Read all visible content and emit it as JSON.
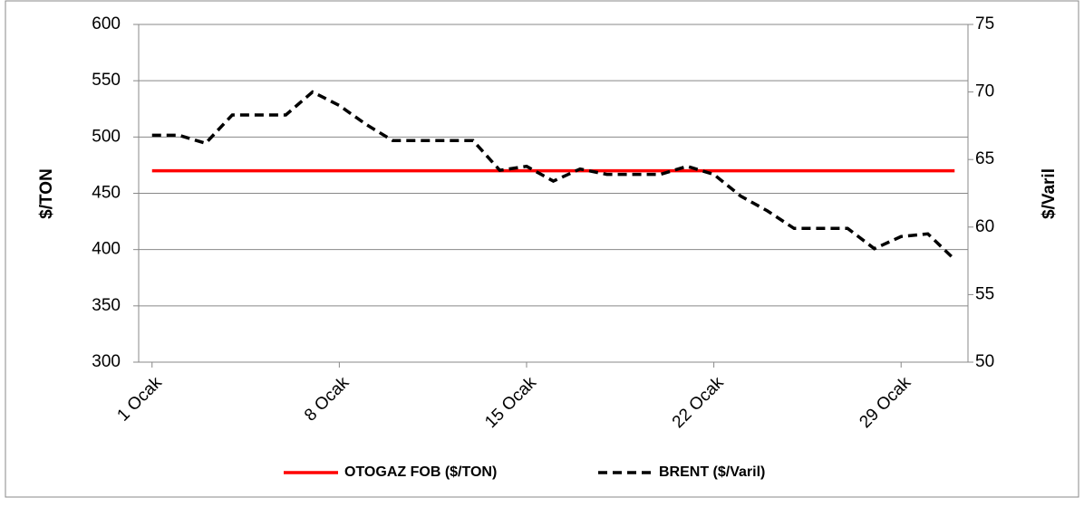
{
  "chart_data": {
    "type": "line",
    "x": [
      1,
      2,
      3,
      4,
      5,
      6,
      7,
      8,
      9,
      10,
      11,
      12,
      13,
      14,
      15,
      16,
      17,
      18,
      19,
      20,
      21,
      22,
      23,
      24,
      25,
      26,
      27,
      28,
      29,
      30,
      31
    ],
    "xlim": [
      0.5,
      31.5
    ],
    "xticks": [
      {
        "value": 1,
        "label": "1 Ocak"
      },
      {
        "value": 8,
        "label": "8 Ocak"
      },
      {
        "value": 15,
        "label": "15 Ocak"
      },
      {
        "value": 22,
        "label": "22 Ocak"
      },
      {
        "value": 29,
        "label": "29 Ocak"
      }
    ],
    "ylabel": "$/TON",
    "y2label": "$/Varil",
    "ylim": [
      300,
      600
    ],
    "yticks": [
      300,
      350,
      400,
      450,
      500,
      550,
      600
    ],
    "y2lim": [
      50,
      75
    ],
    "y2ticks": [
      50,
      55,
      60,
      65,
      70,
      75
    ],
    "grid": true,
    "legend": "bottom",
    "series": [
      {
        "name": "OTOGAZ FOB ($/TON)",
        "color": "#ff0000",
        "dash": false,
        "values": [
          470,
          470,
          470,
          470,
          470,
          470,
          470,
          470,
          470,
          470,
          470,
          470,
          470,
          470,
          470,
          470,
          470,
          470,
          470,
          470,
          470,
          470,
          470,
          470,
          470,
          470,
          470,
          470,
          470,
          470,
          470
        ]
      },
      {
        "name": "BRENT ($/Varil)",
        "color": "#000000",
        "dash": true,
        "axis": "y2",
        "values": [
          66.8,
          66.8,
          66.2,
          68.3,
          68.3,
          68.3,
          70.0,
          69.0,
          67.6,
          66.4,
          66.4,
          66.4,
          66.4,
          64.2,
          64.5,
          63.4,
          64.3,
          63.9,
          63.9,
          63.9,
          64.5,
          63.9,
          62.3,
          61.2,
          59.9,
          59.9,
          59.9,
          58.4,
          59.3,
          59.5,
          57.6
        ]
      }
    ]
  }
}
